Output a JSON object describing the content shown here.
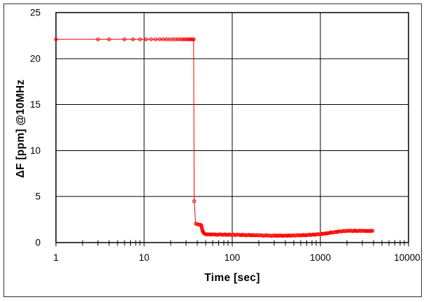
{
  "figure": {
    "background": "#ffffff",
    "border_color": "#2f2f2f",
    "axis_color": "#000000",
    "grid_color": "#000000",
    "text_color": "#000000"
  },
  "chart_data": {
    "type": "scatter",
    "title": "",
    "xlabel": "Time [sec]",
    "ylabel": "ΔF [ppm] @10MHz",
    "x_scale": "log",
    "xlim": [
      1,
      10000
    ],
    "ylim": [
      0,
      25
    ],
    "x_major_ticks": [
      1,
      10,
      100,
      1000,
      10000
    ],
    "x_tick_labels": [
      "1",
      "10",
      "100",
      "1000",
      "10000"
    ],
    "y_major_ticks": [
      0,
      5,
      10,
      15,
      20,
      25
    ],
    "y_tick_labels": [
      "0",
      "5",
      "10",
      "15",
      "20",
      "25"
    ],
    "grid": {
      "x_at": [
        10,
        100,
        1000
      ],
      "y_at": [
        5,
        10,
        15,
        20
      ]
    },
    "legend": "none",
    "series": [
      {
        "name": "ΔF @10MHz",
        "color": "#ff0000",
        "marker": "open-circle",
        "line": true,
        "dense_band_from_t": 44,
        "points": [
          [
            1,
            22.1
          ],
          [
            3,
            22.1
          ],
          [
            4,
            22.1
          ],
          [
            6,
            22.1
          ],
          [
            7.5,
            22.1
          ],
          [
            9,
            22.1
          ],
          [
            10.5,
            22.1
          ],
          [
            12,
            22.1
          ],
          [
            13.5,
            22.1
          ],
          [
            15,
            22.1
          ],
          [
            16.5,
            22.1
          ],
          [
            18,
            22.1
          ],
          [
            19.5,
            22.1
          ],
          [
            21,
            22.1
          ],
          [
            22.5,
            22.1
          ],
          [
            24,
            22.1
          ],
          [
            25.5,
            22.1
          ],
          [
            27,
            22.1
          ],
          [
            28.5,
            22.1
          ],
          [
            30,
            22.1
          ],
          [
            31.5,
            22.1
          ],
          [
            33,
            22.1
          ],
          [
            34.5,
            22.1
          ],
          [
            36,
            22.1
          ],
          [
            36.5,
            22.1
          ],
          [
            37,
            4.5
          ],
          [
            38.5,
            2.05
          ],
          [
            40,
            2.0
          ],
          [
            41.5,
            1.95
          ],
          [
            43,
            1.95
          ],
          [
            44.5,
            1.9
          ],
          [
            46,
            1.3
          ],
          [
            47,
            1.1
          ],
          [
            48,
            1.0
          ],
          [
            50,
            0.92
          ],
          [
            55,
            0.89
          ],
          [
            60,
            0.88
          ],
          [
            70,
            0.87
          ],
          [
            80,
            0.87
          ],
          [
            90,
            0.86
          ],
          [
            100,
            0.86
          ],
          [
            120,
            0.84
          ],
          [
            140,
            0.82
          ],
          [
            160,
            0.81
          ],
          [
            180,
            0.79
          ],
          [
            200,
            0.78
          ],
          [
            250,
            0.76
          ],
          [
            300,
            0.75
          ],
          [
            350,
            0.75
          ],
          [
            400,
            0.76
          ],
          [
            450,
            0.77
          ],
          [
            500,
            0.78
          ],
          [
            600,
            0.8
          ],
          [
            700,
            0.82
          ],
          [
            800,
            0.85
          ],
          [
            900,
            0.88
          ],
          [
            1000,
            0.92
          ],
          [
            1100,
            0.97
          ],
          [
            1200,
            1.03
          ],
          [
            1350,
            1.1
          ],
          [
            1500,
            1.16
          ],
          [
            1700,
            1.22
          ],
          [
            1900,
            1.25
          ],
          [
            2100,
            1.27
          ],
          [
            2400,
            1.28
          ],
          [
            2700,
            1.28
          ],
          [
            3000,
            1.29
          ],
          [
            3300,
            1.28
          ],
          [
            3600,
            1.28
          ],
          [
            3900,
            1.28
          ]
        ]
      }
    ]
  }
}
